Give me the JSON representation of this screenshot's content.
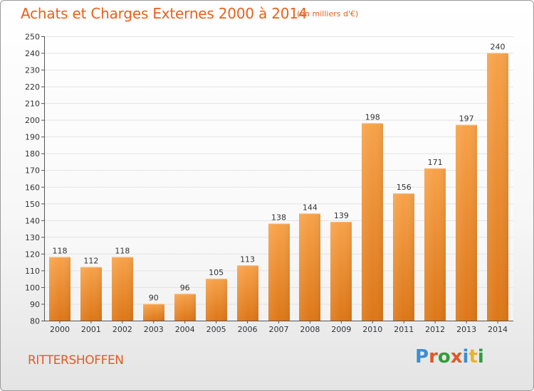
{
  "header": {
    "title": "Achats et Charges Externes 2000 à 2014",
    "subtitle": "(en milliers d'€)"
  },
  "footer": {
    "commune": "RITTERSHOFFEN",
    "logo_text": "Proxiti",
    "logo_colors": [
      "#3b8fd1",
      "#e0582a",
      "#2f9e3c",
      "#e0582a",
      "#3b8fd1",
      "#e8b52a",
      "#2f9e3c"
    ]
  },
  "colors": {
    "bar_light": "#f7a24a",
    "bar_dark": "#dd7718",
    "title": "#e8611a",
    "grid": "#e3e3e3"
  },
  "chart_data": {
    "type": "bar",
    "title": "Achats et Charges Externes 2000 à 2014",
    "subtitle": "(en milliers d'€)",
    "categories": [
      "2000",
      "2001",
      "2002",
      "2003",
      "2004",
      "2005",
      "2006",
      "2007",
      "2008",
      "2009",
      "2010",
      "2011",
      "2012",
      "2013",
      "2014"
    ],
    "values": [
      118,
      112,
      118,
      90,
      96,
      105,
      113,
      138,
      144,
      139,
      198,
      156,
      171,
      197,
      240
    ],
    "ylim": [
      80,
      250
    ],
    "yticks": [
      80,
      90,
      100,
      110,
      120,
      130,
      140,
      150,
      160,
      170,
      180,
      190,
      200,
      210,
      220,
      230,
      240,
      250
    ],
    "grid": true,
    "legend": "none"
  }
}
